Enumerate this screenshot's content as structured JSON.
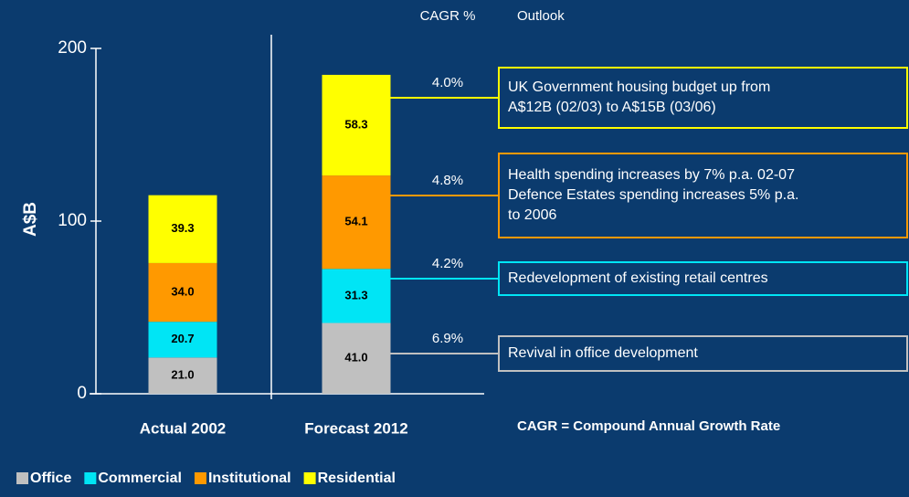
{
  "chart_data": {
    "type": "stacked_bar",
    "y_label": "A$B",
    "cagr_header": "CAGR %",
    "outlook_header": "Outlook",
    "footnote": "CAGR =  Compound Annual Growth Rate",
    "categories": [
      "Actual 2002",
      "Forecast 2012"
    ],
    "ylim": [
      0,
      200
    ],
    "yticks": [
      0,
      100,
      200
    ],
    "series": [
      {
        "name": "Office",
        "color": "#c0c0c0",
        "values": [
          21.0,
          41.0
        ],
        "value_labels": [
          "21.0",
          "41.0"
        ],
        "cagr": "6.9%",
        "outlook": [
          "Revival in office development"
        ]
      },
      {
        "name": "Commercial",
        "color": "#00e5f5",
        "values": [
          20.7,
          31.3
        ],
        "value_labels": [
          "20.7",
          "31.3"
        ],
        "cagr": "4.2%",
        "outlook": [
          "Redevelopment of existing retail centres"
        ]
      },
      {
        "name": "Institutional",
        "color": "#ff9900",
        "values": [
          34.0,
          54.1
        ],
        "value_labels": [
          "34.0",
          "54.1"
        ],
        "cagr": "4.8%",
        "outlook": [
          "Health spending increases by 7% p.a. 02-07",
          "Defence Estates spending increases 5% p.a.",
          "to 2006"
        ]
      },
      {
        "name": "Residential",
        "color": "#ffff00",
        "values": [
          39.3,
          58.3
        ],
        "value_labels": [
          "39.3",
          "58.3"
        ],
        "cagr": "4.0%",
        "outlook": [
          "UK Government housing budget up from",
          "A$12B (02/03) to A$15B (03/06)"
        ]
      }
    ]
  }
}
